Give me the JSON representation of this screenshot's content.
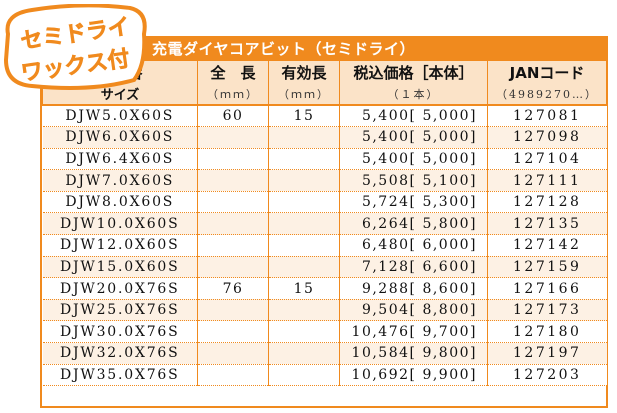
{
  "badge": {
    "line1": "セミドライ",
    "line2": "ワックス付"
  },
  "title": "充電ダイヤコアビット（セミドライ）",
  "headers": {
    "col1_top": "品　番",
    "col1_bot": "サイズ",
    "col2_top": "全　長",
    "col2_bot": "（ｍｍ）",
    "col3_top": "有効長",
    "col3_bot": "（ｍｍ）",
    "col4_top": "税込価格［本体］",
    "col4_bot": "（１本）",
    "col5_top": "JANコード",
    "col5_bot": "（4989270…）"
  },
  "rows": [
    {
      "code": "DJW5.0X60S",
      "length": "60",
      "effective": "15",
      "price": "5,400[ 5,000]",
      "jan": "127081"
    },
    {
      "code": "DJW6.0X60S",
      "length": "",
      "effective": "",
      "price": "5,400[ 5,000]",
      "jan": "127098"
    },
    {
      "code": "DJW6.4X60S",
      "length": "",
      "effective": "",
      "price": "5,400[ 5,000]",
      "jan": "127104"
    },
    {
      "code": "DJW7.0X60S",
      "length": "",
      "effective": "",
      "price": "5,508[ 5,100]",
      "jan": "127111"
    },
    {
      "code": "DJW8.0X60S",
      "length": "",
      "effective": "",
      "price": "5,724[ 5,300]",
      "jan": "127128"
    },
    {
      "code": "DJW10.0X60S",
      "length": "",
      "effective": "",
      "price": "6,264[ 5,800]",
      "jan": "127135"
    },
    {
      "code": "DJW12.0X60S",
      "length": "",
      "effective": "",
      "price": "6,480[ 6,000]",
      "jan": "127142"
    },
    {
      "code": "DJW15.0X60S",
      "length": "",
      "effective": "",
      "price": "7,128[ 6,600]",
      "jan": "127159"
    },
    {
      "code": "DJW20.0X76S",
      "length": "76",
      "effective": "15",
      "price": "9,288[ 8,600]",
      "jan": "127166"
    },
    {
      "code": "DJW25.0X76S",
      "length": "",
      "effective": "",
      "price": "9,504[ 8,800]",
      "jan": "127173"
    },
    {
      "code": "DJW30.0X76S",
      "length": "",
      "effective": "",
      "price": "10,476[ 9,700]",
      "jan": "127180"
    },
    {
      "code": "DJW32.0X76S",
      "length": "",
      "effective": "",
      "price": "10,584[ 9,800]",
      "jan": "127197"
    },
    {
      "code": "DJW35.0X76S",
      "length": "",
      "effective": "",
      "price": "10,692[ 9,900]",
      "jan": "127203"
    }
  ],
  "colors": {
    "accent": "#f08a1e",
    "header_bg": "#fbe3c8",
    "stripe": "#fdf1e4"
  }
}
